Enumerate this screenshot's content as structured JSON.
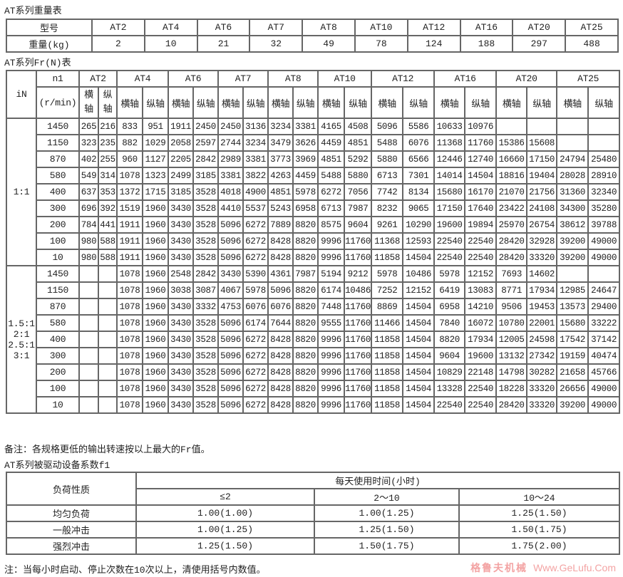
{
  "weight_table": {
    "title": "AT系列重量表",
    "row_labels": [
      "型号",
      "重量(kg)"
    ],
    "models": [
      "AT2",
      "AT4",
      "AT6",
      "AT7",
      "AT8",
      "AT10",
      "AT12",
      "AT16",
      "AT20",
      "AT25"
    ],
    "weights": [
      "2",
      "10",
      "21",
      "32",
      "49",
      "78",
      "124",
      "188",
      "297",
      "488"
    ]
  },
  "fr_table": {
    "title": "AT系列Fr(N)表",
    "iN_label": "iN",
    "n1_label": "n1",
    "n1_unit": "(r/min)",
    "models": [
      "AT2",
      "AT4",
      "AT6",
      "AT7",
      "AT8",
      "AT10",
      "AT12",
      "AT16",
      "AT20",
      "AT25"
    ],
    "axis_labels": [
      "横轴",
      "纵轴"
    ],
    "groups": [
      {
        "ratio": [
          "1:1"
        ],
        "rows": [
          {
            "n1": "1450",
            "v": [
              "265",
              "216",
              "833",
              "951",
              "1911",
              "2450",
              "2450",
              "3136",
              "3234",
              "3381",
              "4165",
              "4508",
              "5096",
              "5586",
              "10633",
              "10976",
              "",
              "",
              "",
              ""
            ]
          },
          {
            "n1": "1150",
            "v": [
              "323",
              "235",
              "882",
              "1029",
              "2058",
              "2597",
              "2744",
              "3234",
              "3479",
              "3626",
              "4459",
              "4851",
              "5488",
              "6076",
              "11368",
              "11760",
              "15386",
              "15608",
              "",
              ""
            ]
          },
          {
            "n1": "870",
            "v": [
              "402",
              "255",
              "960",
              "1127",
              "2205",
              "2842",
              "2989",
              "3381",
              "3773",
              "3969",
              "4851",
              "5292",
              "5880",
              "6566",
              "12446",
              "12740",
              "16660",
              "17150",
              "24794",
              "25480"
            ]
          },
          {
            "n1": "580",
            "v": [
              "549",
              "314",
              "1078",
              "1323",
              "2499",
              "3185",
              "3381",
              "3822",
              "4263",
              "4459",
              "5488",
              "5880",
              "6713",
              "7301",
              "14014",
              "14504",
              "18816",
              "19404",
              "28028",
              "28910"
            ]
          },
          {
            "n1": "400",
            "v": [
              "637",
              "353",
              "1372",
              "1715",
              "3185",
              "3528",
              "4018",
              "4900",
              "4851",
              "5978",
              "6272",
              "7056",
              "7742",
              "8134",
              "15680",
              "16170",
              "21070",
              "21756",
              "31360",
              "32340"
            ]
          },
          {
            "n1": "300",
            "v": [
              "696",
              "392",
              "1519",
              "1960",
              "3430",
              "3528",
              "4410",
              "5537",
              "5243",
              "6958",
              "6713",
              "7987",
              "8232",
              "9065",
              "17150",
              "17640",
              "23422",
              "24108",
              "34300",
              "35280"
            ]
          },
          {
            "n1": "200",
            "v": [
              "784",
              "441",
              "1911",
              "1960",
              "3430",
              "3528",
              "5096",
              "6272",
              "7889",
              "8820",
              "8575",
              "9604",
              "9261",
              "10290",
              "19600",
              "19894",
              "25970",
              "26754",
              "38612",
              "39788"
            ]
          },
          {
            "n1": "100",
            "v": [
              "980",
              "588",
              "1911",
              "1960",
              "3430",
              "3528",
              "5096",
              "6272",
              "8428",
              "8820",
              "9996",
              "11760",
              "11368",
              "12593",
              "22540",
              "22540",
              "28420",
              "32928",
              "39200",
              "49000"
            ]
          },
          {
            "n1": "10",
            "v": [
              "980",
              "588",
              "1911",
              "1960",
              "3430",
              "3528",
              "5096",
              "6272",
              "8428",
              "8820",
              "9996",
              "11760",
              "11858",
              "14504",
              "22540",
              "22540",
              "28420",
              "33320",
              "39200",
              "49000"
            ]
          }
        ]
      },
      {
        "ratio": [
          "1.5:1",
          "2:1",
          "2.5:1",
          "3:1"
        ],
        "rows": [
          {
            "n1": "1450",
            "v": [
              "",
              "",
              "1078",
              "1960",
              "2548",
              "2842",
              "3430",
              "5390",
              "4361",
              "7987",
              "5194",
              "9212",
              "5978",
              "10486",
              "5978",
              "12152",
              "7693",
              "14602",
              "",
              ""
            ]
          },
          {
            "n1": "1150",
            "v": [
              "",
              "",
              "1078",
              "1960",
              "3038",
              "3087",
              "4067",
              "5978",
              "5096",
              "8820",
              "6174",
              "10486",
              "7252",
              "12152",
              "6419",
              "13083",
              "8771",
              "17934",
              "12985",
              "24647"
            ]
          },
          {
            "n1": "870",
            "v": [
              "",
              "",
              "1078",
              "1960",
              "3430",
              "3332",
              "4753",
              "6076",
              "6076",
              "8820",
              "7448",
              "11760",
              "8869",
              "14504",
              "6958",
              "14210",
              "9506",
              "19453",
              "13573",
              "29400"
            ]
          },
          {
            "n1": "580",
            "v": [
              "",
              "",
              "1078",
              "1960",
              "3430",
              "3528",
              "5096",
              "6174",
              "7644",
              "8820",
              "9555",
              "11760",
              "11466",
              "14504",
              "7840",
              "16072",
              "10780",
              "22001",
              "15680",
              "33222"
            ]
          },
          {
            "n1": "400",
            "v": [
              "",
              "",
              "1078",
              "1960",
              "3430",
              "3528",
              "5096",
              "6272",
              "8428",
              "8820",
              "9996",
              "11760",
              "11858",
              "14504",
              "8820",
              "17934",
              "12005",
              "24598",
              "17542",
              "37142"
            ]
          },
          {
            "n1": "300",
            "v": [
              "",
              "",
              "1078",
              "1960",
              "3430",
              "3528",
              "5096",
              "6272",
              "8428",
              "8820",
              "9996",
              "11760",
              "11858",
              "14504",
              "9604",
              "19600",
              "13132",
              "27342",
              "19159",
              "40474"
            ]
          },
          {
            "n1": "200",
            "v": [
              "",
              "",
              "1078",
              "1960",
              "3430",
              "3528",
              "5096",
              "6272",
              "8428",
              "8820",
              "9996",
              "11760",
              "11858",
              "14504",
              "10829",
              "22148",
              "14798",
              "30282",
              "21658",
              "45766"
            ]
          },
          {
            "n1": "100",
            "v": [
              "",
              "",
              "1078",
              "1960",
              "3430",
              "3528",
              "5096",
              "6272",
              "8428",
              "8820",
              "9996",
              "11760",
              "11858",
              "14504",
              "13328",
              "22540",
              "18228",
              "33320",
              "26656",
              "49000"
            ]
          },
          {
            "n1": "10",
            "v": [
              "",
              "",
              "1078",
              "1960",
              "3430",
              "3528",
              "5096",
              "6272",
              "8428",
              "8820",
              "9996",
              "11760",
              "11858",
              "14504",
              "22540",
              "22540",
              "28420",
              "33320",
              "39200",
              "49000"
            ]
          }
        ]
      }
    ],
    "note": "备注：各规格更低的输出转速按以上最大的Fr值。"
  },
  "f1_table": {
    "title": "AT系列被驱动设备系数f1",
    "load_label": "负荷性质",
    "time_label": "每天使用时间(小时)",
    "time_cols": [
      "≤2",
      "2～10",
      "10～24"
    ],
    "rows": [
      {
        "load": "均匀负荷",
        "v": [
          "1.00(1.00)",
          "1.00(1.25)",
          "1.25(1.50)"
        ]
      },
      {
        "load": "一般冲击",
        "v": [
          "1.00(1.25)",
          "1.25(1.50)",
          "1.50(1.75)"
        ]
      },
      {
        "load": "强烈冲击",
        "v": [
          "1.25(1.50)",
          "1.50(1.75)",
          "1.75(2.00)"
        ]
      }
    ],
    "note": "注：当每小时启动、停止次数在10次以上，清使用括号内数值。"
  },
  "watermark": {
    "line1": "格鲁夫机械",
    "line2": "Www.GeLufu.Com"
  }
}
